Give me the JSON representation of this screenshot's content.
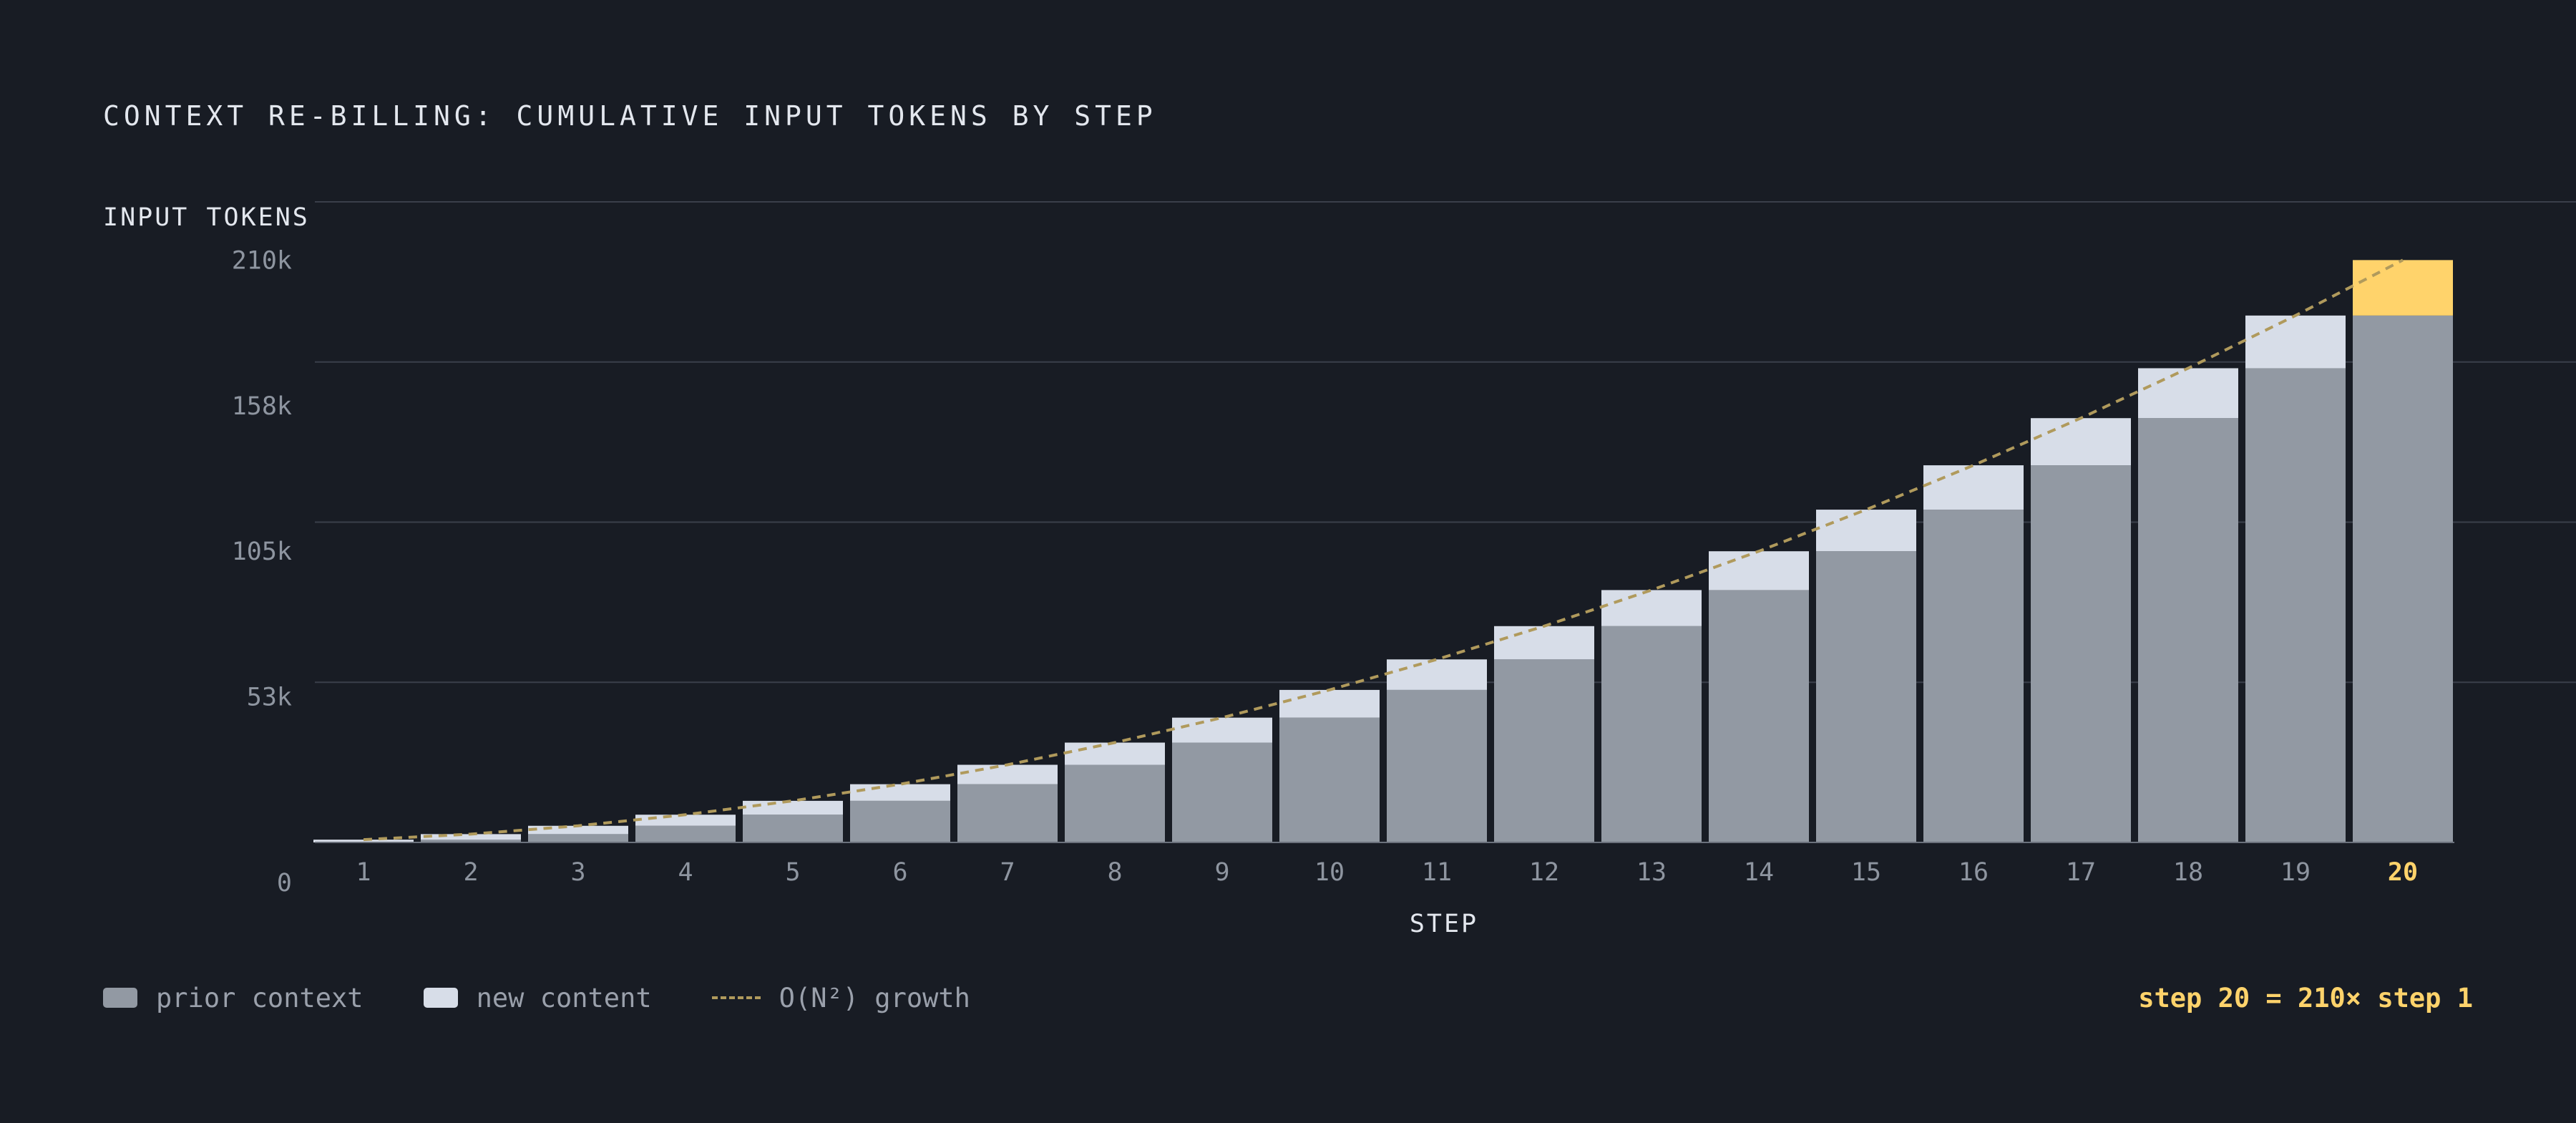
{
  "title": "CONTEXT RE-BILLING: CUMULATIVE INPUT TOKENS BY STEP",
  "legend": {
    "prior_label": "prior context",
    "new_label": "new content",
    "growth_label": "O(N²) growth"
  },
  "callout": "step 20 = 210× step 1",
  "colors": {
    "background": "#181c24",
    "prior": "#9299a3",
    "new": "#d7dde8",
    "highlight": "#ffd36b",
    "growth_line": "#b09a5c",
    "grid": "#3a3f4a"
  },
  "chart_data": {
    "type": "bar",
    "stacked": true,
    "ylabel": "INPUT TOKENS",
    "xlabel": "STEP",
    "ylim": [
      0,
      231000
    ],
    "y_ticks": [
      {
        "value": 0,
        "label": "0"
      },
      {
        "value": 52500,
        "label": "53k"
      },
      {
        "value": 105000,
        "label": "105k"
      },
      {
        "value": 157500,
        "label": "158k"
      },
      {
        "value": 210000,
        "label": "210k"
      }
    ],
    "grid": true,
    "categories": [
      "1",
      "2",
      "3",
      "4",
      "5",
      "6",
      "7",
      "8",
      "9",
      "10",
      "11",
      "12",
      "13",
      "14",
      "15",
      "16",
      "17",
      "18",
      "19",
      "20"
    ],
    "highlight_category": "20",
    "series": [
      {
        "name": "prior context",
        "values": [
          0,
          1000,
          3000,
          6000,
          10000,
          15000,
          21000,
          28000,
          36000,
          45000,
          55000,
          66000,
          78000,
          91000,
          105000,
          120000,
          136000,
          153000,
          171000,
          190000
        ]
      },
      {
        "name": "new content",
        "values": [
          1000,
          2000,
          3000,
          4000,
          5000,
          6000,
          7000,
          8000,
          9000,
          10000,
          11000,
          12000,
          13000,
          14000,
          15000,
          16000,
          17000,
          18000,
          19000,
          20000
        ]
      },
      {
        "name": "O(N²) growth",
        "type": "line",
        "style": "dashed",
        "values": [
          1000,
          3000,
          6000,
          10000,
          15000,
          21000,
          28000,
          36000,
          45000,
          55000,
          66000,
          78000,
          91000,
          105000,
          120000,
          136000,
          153000,
          171000,
          190000,
          210000
        ]
      }
    ]
  }
}
